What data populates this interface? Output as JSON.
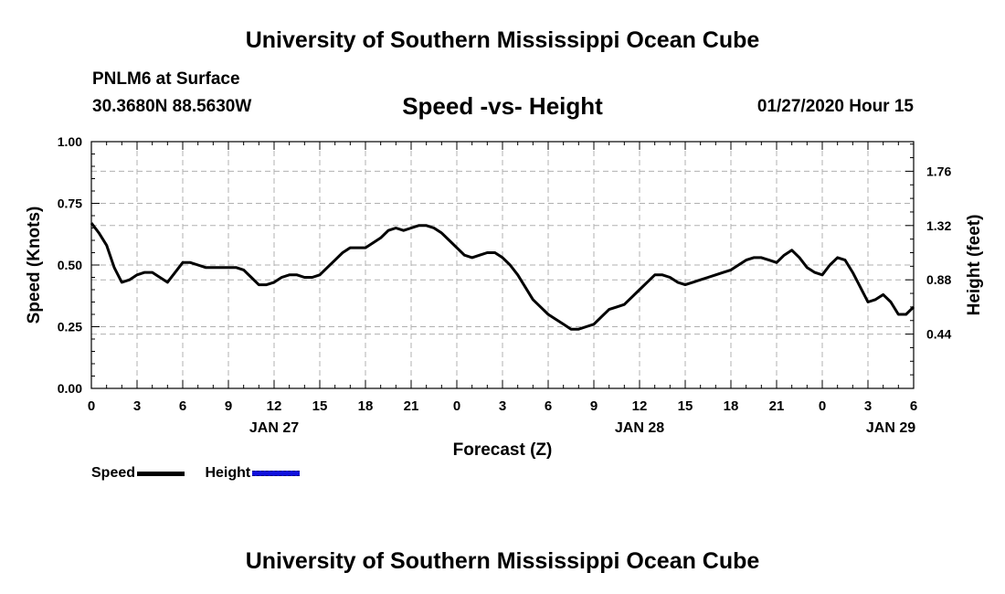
{
  "header": {
    "title": "University of Southern Mississippi Ocean Cube",
    "station": "PNLM6 at Surface",
    "coords": "30.3680N 88.5630W",
    "chart_title": "Speed -vs- Height",
    "timestamp": "01/27/2020 Hour 15"
  },
  "footer": {
    "title": "University of Southern Mississippi Ocean Cube"
  },
  "legend": {
    "speed_label": "Speed",
    "height_label": "Height"
  },
  "colors": {
    "speed": "#000000",
    "height": "#1010dd",
    "grid": "#b0b0b0"
  },
  "chart_data": {
    "type": "line",
    "title": "Speed -vs- Height",
    "xlabel": "Forecast (Z)",
    "ylabel": "Speed (Knots)",
    "y2label": "Height (feet)",
    "xlim": [
      0,
      54
    ],
    "ylim": [
      0,
      1.0
    ],
    "y2lim": [
      0,
      2.0
    ],
    "x_ticks": [
      0,
      3,
      6,
      9,
      12,
      15,
      18,
      21,
      24,
      27,
      30,
      33,
      36,
      39,
      42,
      45,
      48,
      51,
      54
    ],
    "x_tick_labels": [
      "0",
      "3",
      "6",
      "9",
      "12",
      "15",
      "18",
      "21",
      "0",
      "3",
      "6",
      "9",
      "12",
      "15",
      "18",
      "21",
      "0",
      "3",
      "6"
    ],
    "date_labels": [
      {
        "x": 12,
        "label": "JAN 27"
      },
      {
        "x": 36,
        "label": "JAN 28"
      },
      {
        "x": 52.5,
        "label": "JAN 29"
      }
    ],
    "y_ticks": [
      0.0,
      0.25,
      0.5,
      0.75,
      1.0
    ],
    "y_tick_labels": [
      "0.00",
      "0.25",
      "0.50",
      "0.75",
      "1.00"
    ],
    "y2_ticks": [
      0.44,
      0.88,
      1.32,
      1.76
    ],
    "y2_tick_labels": [
      "0.44",
      "0.88",
      "1.32",
      "1.76"
    ],
    "grid": true,
    "series": [
      {
        "name": "Speed",
        "x": [
          0,
          0.5,
          1,
          1.5,
          2,
          2.5,
          3,
          3.5,
          4,
          4.5,
          5,
          5.5,
          6,
          6.5,
          7,
          7.5,
          8,
          8.5,
          9,
          9.5,
          10,
          10.5,
          11,
          11.5,
          12,
          12.5,
          13,
          13.5,
          14,
          14.5,
          15,
          15.5,
          16,
          16.5,
          17,
          17.5,
          18,
          18.5,
          19,
          19.5,
          20,
          20.5,
          21,
          21.5,
          22,
          22.5,
          23,
          23.5,
          24,
          24.5,
          25,
          25.5,
          26,
          26.5,
          27,
          27.5,
          28,
          28.5,
          29,
          29.5,
          30,
          30.5,
          31,
          31.5,
          32,
          32.5,
          33,
          33.5,
          34,
          34.5,
          35,
          35.5,
          36,
          36.5,
          37,
          37.5,
          38,
          38.5,
          39,
          39.5,
          40,
          40.5,
          41,
          41.5,
          42,
          42.5,
          43,
          43.5,
          44,
          44.5,
          45,
          45.5,
          46,
          46.5,
          47,
          47.5,
          48,
          48.5,
          49,
          49.5,
          50,
          50.5,
          51,
          51.5,
          52,
          52.5,
          53,
          53.5,
          54
        ],
        "values": [
          0.67,
          0.63,
          0.58,
          0.49,
          0.43,
          0.44,
          0.46,
          0.47,
          0.47,
          0.45,
          0.43,
          0.47,
          0.51,
          0.51,
          0.5,
          0.49,
          0.49,
          0.49,
          0.49,
          0.49,
          0.48,
          0.45,
          0.42,
          0.42,
          0.43,
          0.45,
          0.46,
          0.46,
          0.45,
          0.45,
          0.46,
          0.49,
          0.52,
          0.55,
          0.57,
          0.57,
          0.57,
          0.59,
          0.61,
          0.64,
          0.65,
          0.64,
          0.65,
          0.66,
          0.66,
          0.65,
          0.63,
          0.6,
          0.57,
          0.54,
          0.53,
          0.54,
          0.55,
          0.55,
          0.53,
          0.5,
          0.46,
          0.41,
          0.36,
          0.33,
          0.3,
          0.28,
          0.26,
          0.24,
          0.24,
          0.25,
          0.26,
          0.29,
          0.32,
          0.33,
          0.34,
          0.37,
          0.4,
          0.43,
          0.46,
          0.46,
          0.45,
          0.43,
          0.42,
          0.43,
          0.44,
          0.45,
          0.46,
          0.47,
          0.48,
          0.5,
          0.52,
          0.53,
          0.53,
          0.52,
          0.51,
          0.54,
          0.56,
          0.53,
          0.49,
          0.47,
          0.46,
          0.5,
          0.53,
          0.52,
          0.47,
          0.41,
          0.35,
          0.36,
          0.38,
          0.35,
          0.3,
          0.3,
          0.33
        ]
      },
      {
        "name": "Height",
        "x": [],
        "values": []
      }
    ]
  }
}
